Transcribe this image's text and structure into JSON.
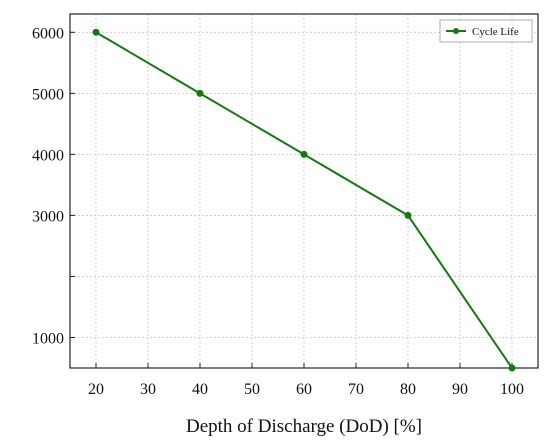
{
  "chart_data": {
    "type": "line",
    "title": "",
    "xlabel": "Depth of Discharge (DoD) [%]",
    "ylabel": "",
    "xlim": [
      15,
      105
    ],
    "ylim": [
      500,
      6300
    ],
    "x_ticks": [
      20,
      30,
      40,
      50,
      60,
      70,
      80,
      90,
      100
    ],
    "y_ticks": [
      1000,
      2000,
      3000,
      4000,
      5000,
      6000
    ],
    "x_tick_labels": [
      "20",
      "30",
      "40",
      "50",
      "60",
      "70",
      "80",
      "90",
      "100"
    ],
    "y_tick_labels": [
      "1000",
      "",
      "3000",
      "4000",
      "5000",
      "6000"
    ],
    "grid": true,
    "legend_position": "top-right",
    "series": [
      {
        "name": "Cycle Life",
        "color": "#117a11",
        "marker": "circle",
        "x": [
          20,
          40,
          60,
          80,
          100
        ],
        "y": [
          6000,
          5000,
          4000,
          3000,
          500
        ]
      }
    ]
  }
}
